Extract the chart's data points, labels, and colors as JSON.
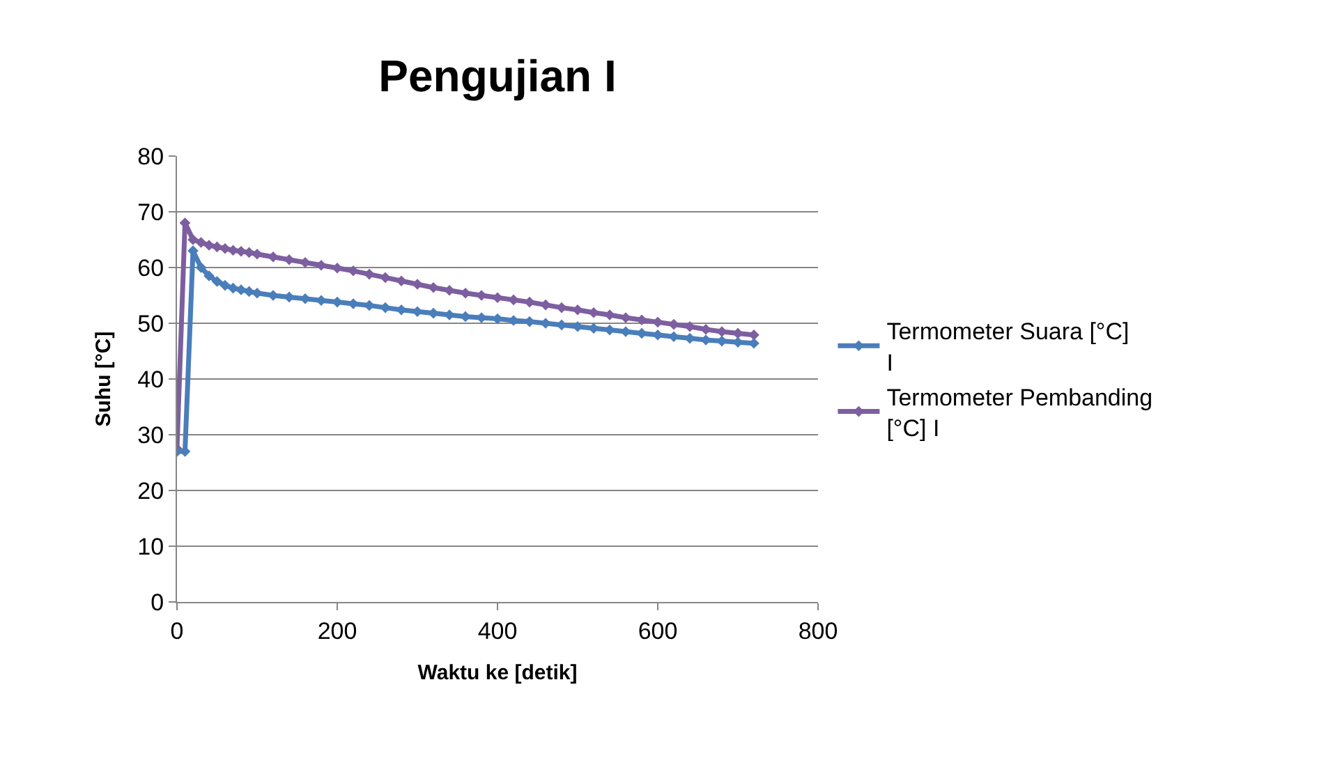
{
  "chart_data": {
    "type": "line",
    "title": "Pengujian I",
    "xlabel": "Waktu ke [detik]",
    "ylabel": "Suhu [°C]",
    "xlim": [
      0,
      800
    ],
    "xticks": [
      0,
      200,
      400,
      600,
      800
    ],
    "ylim": [
      0,
      80
    ],
    "yticks": [
      0,
      10,
      20,
      30,
      40,
      50,
      60,
      70,
      80
    ],
    "grid": "y",
    "legend": "right",
    "marker": "diamond",
    "line_style": "solid",
    "series": [
      {
        "name": "Termometer Suara [°C] I",
        "color": "#4a7ebb",
        "x": [
          0,
          10,
          20,
          30,
          40,
          50,
          60,
          70,
          80,
          90,
          100,
          120,
          140,
          160,
          180,
          200,
          220,
          240,
          260,
          280,
          300,
          320,
          340,
          360,
          380,
          400,
          420,
          440,
          460,
          480,
          500,
          520,
          540,
          560,
          580,
          600,
          620,
          640,
          660,
          680,
          700,
          720
        ],
        "values": [
          27,
          27,
          63,
          60,
          58.5,
          57.5,
          56.8,
          56.3,
          56,
          55.7,
          55.4,
          55,
          54.7,
          54.4,
          54.1,
          53.8,
          53.5,
          53.2,
          52.8,
          52.4,
          52.1,
          51.8,
          51.5,
          51.2,
          51,
          50.8,
          50.5,
          50.3,
          50,
          49.7,
          49.4,
          49.1,
          48.8,
          48.5,
          48.2,
          47.9,
          47.6,
          47.3,
          47,
          46.8,
          46.6,
          46.4
        ]
      },
      {
        "name": "Termometer Pembanding [°C] I",
        "color": "#7d5fa0",
        "x": [
          0,
          10,
          20,
          30,
          40,
          50,
          60,
          70,
          80,
          90,
          100,
          120,
          140,
          160,
          180,
          200,
          220,
          240,
          260,
          280,
          300,
          320,
          340,
          360,
          380,
          400,
          420,
          440,
          460,
          480,
          500,
          520,
          540,
          560,
          580,
          600,
          620,
          640,
          660,
          680,
          700,
          720
        ],
        "values": [
          27.5,
          68,
          65,
          64.5,
          64,
          63.7,
          63.4,
          63.1,
          62.9,
          62.7,
          62.4,
          61.9,
          61.4,
          60.9,
          60.4,
          59.9,
          59.4,
          58.8,
          58.2,
          57.6,
          57,
          56.4,
          55.9,
          55.4,
          55,
          54.6,
          54.2,
          53.8,
          53.3,
          52.8,
          52.4,
          51.9,
          51.5,
          51,
          50.6,
          50.2,
          49.8,
          49.4,
          48.9,
          48.5,
          48.2,
          47.9
        ]
      }
    ]
  }
}
